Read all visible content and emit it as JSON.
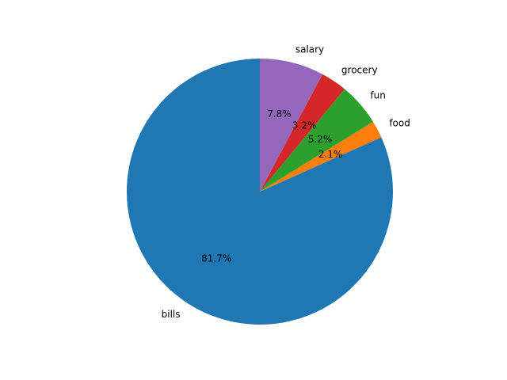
{
  "chart_data": {
    "type": "pie",
    "title": "",
    "start_angle_deg": 90,
    "direction": "counterclockwise",
    "slices": [
      {
        "label": "bills",
        "value": 81.7,
        "pct_label": "81.7%",
        "color": "#1f77b4"
      },
      {
        "label": "food",
        "value": 2.1,
        "pct_label": "2.1%",
        "color": "#ff7f0e"
      },
      {
        "label": "fun",
        "value": 5.2,
        "pct_label": "5.2%",
        "color": "#2ca02c"
      },
      {
        "label": "grocery",
        "value": 3.2,
        "pct_label": "3.2%",
        "color": "#d62728"
      },
      {
        "label": "salary",
        "value": 7.8,
        "pct_label": "7.8%",
        "color": "#9467bd"
      }
    ]
  }
}
